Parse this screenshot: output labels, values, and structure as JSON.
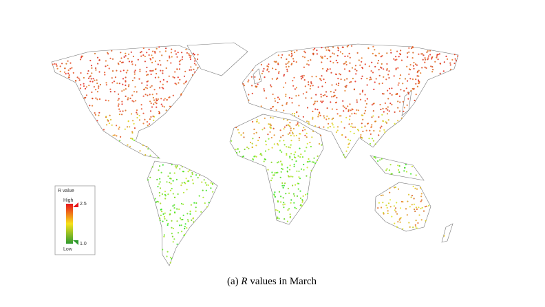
{
  "legend": {
    "title": "R value",
    "high_label": "High",
    "low_label": "Low",
    "max": 2.5,
    "min": {
      "value": 1,
      "label": "1.0"
    }
  },
  "caption": {
    "prefix": "(a)",
    "variable": "R",
    "text": "values in March"
  }
}
